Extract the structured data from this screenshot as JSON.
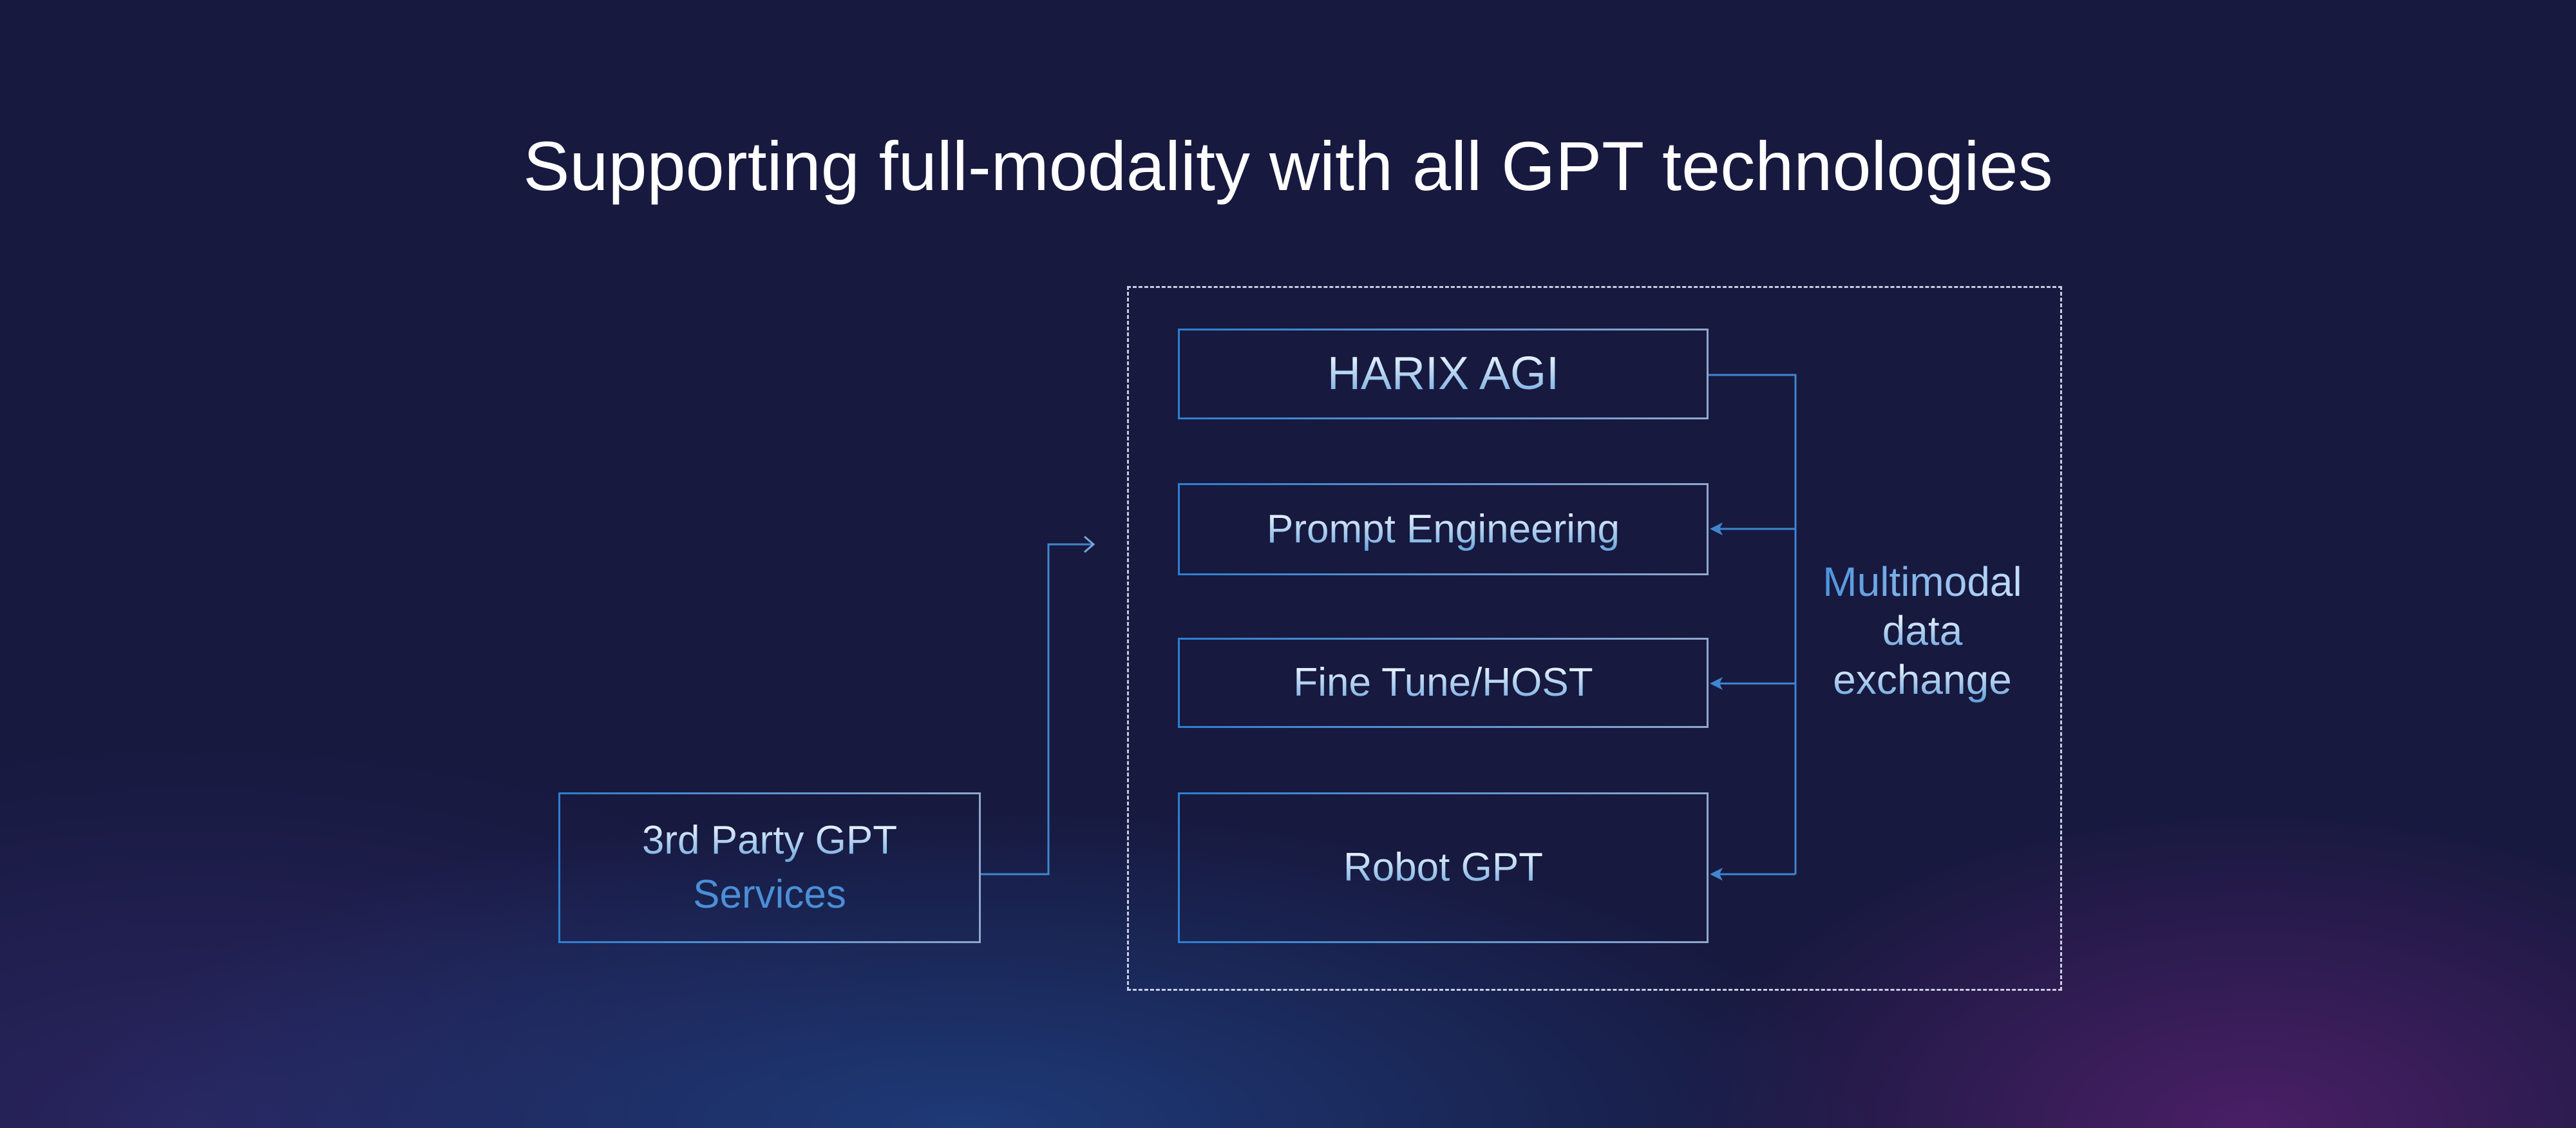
{
  "title": "Supporting full-modality with all GPT technologies",
  "boxes": {
    "harix": "HARIX AGI",
    "prompt": "Prompt Engineering",
    "finetune": "Fine Tune/HOST",
    "robot": "Robot GPT",
    "third_party_line1": "3rd Party GPT",
    "third_party_line2": "Services"
  },
  "exchange_label": [
    "Multimodal",
    "data",
    "exchange"
  ],
  "colors": {
    "background": "#17193f",
    "accent": "#2d7fd0",
    "text": "#e8f4ff"
  }
}
